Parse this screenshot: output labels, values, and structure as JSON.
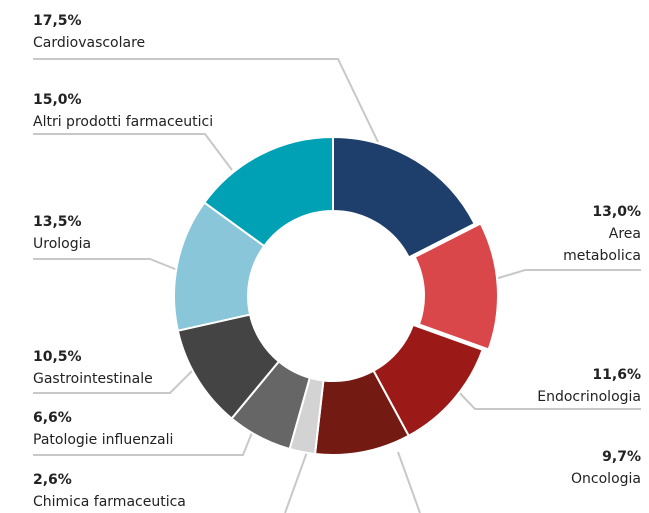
{
  "chart_data": {
    "type": "donut",
    "categories": [
      "Cardiovascolare",
      "Area metabolica",
      "Endocrinologia",
      "Oncologia",
      "Chimica farmaceutica",
      "Patologie influenzali",
      "Gastrointestinale",
      "Urologia",
      "Altri prodotti farmaceutici"
    ],
    "values": [
      17.5,
      13.0,
      11.6,
      9.7,
      2.6,
      6.6,
      10.5,
      13.5,
      15.0
    ],
    "value_labels": [
      "17,5%",
      "13,0%",
      "11,6%",
      "9,7%",
      "2,6%",
      "6,6%",
      "10,5%",
      "13,5%",
      "15,0%"
    ],
    "colors": [
      "#1e3f6b",
      "#d9474b",
      "#9b1a17",
      "#731a12",
      "#d3d3d3",
      "#666666",
      "#444444",
      "#8ac6d9",
      "#00a0b5"
    ]
  }
}
